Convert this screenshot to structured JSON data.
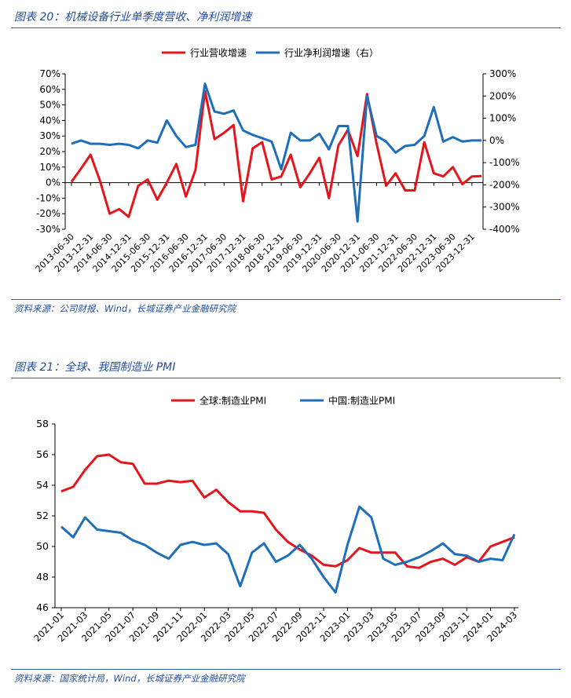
{
  "figures": [
    {
      "title": "图表 20：机械设备行业单季度营收、净利润增速",
      "source": "资料来源：公司财报、Wind，长城证券产业金融研究院"
    },
    {
      "title": "图表 21：全球、我国制造业 PMI",
      "source": "资料来源：国家统计局，Wind，长城证券产业金融研究院"
    }
  ],
  "colors": {
    "red": "#e3161d",
    "blue": "#1f6fb8",
    "frame": "#2a63b8"
  },
  "chart_data": [
    {
      "type": "line",
      "legend_position": "top",
      "grid": false,
      "x_tick_labels": [
        "2013-06-30",
        "2013-12-31",
        "2014-06-30",
        "2014-12-31",
        "2015-06-30",
        "2015-12-31",
        "2016-06-30",
        "2016-12-31",
        "2017-06-30",
        "2017-12-31",
        "2018-06-30",
        "2018-12-31",
        "2019-06-30",
        "2019-12-31",
        "2020-06-30",
        "2020-12-31",
        "2021-06-30",
        "2021-12-31",
        "2022-06-30",
        "2022-12-31",
        "2023-06-30",
        "2023-12-31"
      ],
      "x": [
        "2013-06-30",
        "2013-09-30",
        "2013-12-31",
        "2014-03-31",
        "2014-06-30",
        "2014-09-30",
        "2014-12-31",
        "2015-03-31",
        "2015-06-30",
        "2015-09-30",
        "2015-12-31",
        "2016-03-31",
        "2016-06-30",
        "2016-09-30",
        "2016-12-31",
        "2017-03-31",
        "2017-06-30",
        "2017-09-30",
        "2017-12-31",
        "2018-03-31",
        "2018-06-30",
        "2018-09-30",
        "2018-12-31",
        "2019-03-31",
        "2019-06-30",
        "2019-09-30",
        "2019-12-31",
        "2020-03-31",
        "2020-06-30",
        "2020-09-30",
        "2020-12-31",
        "2021-03-31",
        "2021-06-30",
        "2021-09-30",
        "2021-12-31",
        "2022-03-31",
        "2022-06-30",
        "2022-09-30",
        "2022-12-31",
        "2023-03-31",
        "2023-06-30",
        "2023-09-30",
        "2023-12-31",
        "2024-03-31"
      ],
      "left_ylim": [
        -30,
        70
      ],
      "left_ticks": [
        "70%",
        "60%",
        "50%",
        "40%",
        "30%",
        "20%",
        "10%",
        "0%",
        "-10%",
        "-20%",
        "-30%"
      ],
      "right_ylim": [
        -400,
        300
      ],
      "right_ticks": [
        "300%",
        "200%",
        "100%",
        "0%",
        "-100%",
        "-200%",
        "-300%",
        "-400%"
      ],
      "series": [
        {
          "name": "行业营收增速",
          "axis": "left",
          "color": "#e3161d",
          "values": [
            0.5,
            9,
            18,
            1,
            -20,
            -17,
            -22,
            -2,
            2,
            -11,
            0,
            12,
            -9,
            8,
            59,
            28,
            32,
            37,
            -12,
            22,
            26,
            2,
            4,
            18,
            -3,
            6,
            16,
            -10,
            24,
            34,
            17,
            57,
            25,
            -2,
            6,
            -5,
            -5,
            26,
            6,
            4,
            10,
            -1,
            4,
            4.2
          ]
        },
        {
          "name": "行业净利润增速（右）",
          "axis": "right",
          "color": "#1f6fb8",
          "values": [
            -15,
            0,
            -15,
            -15,
            -20,
            -15,
            -20,
            -35,
            0,
            -10,
            90,
            20,
            -30,
            -20,
            255,
            130,
            120,
            135,
            45,
            25,
            10,
            -5,
            -130,
            35,
            0,
            0,
            30,
            -40,
            65,
            65,
            -365,
            200,
            20,
            -5,
            -55,
            -25,
            -20,
            20,
            150,
            -5,
            15,
            -5,
            0,
            0
          ]
        }
      ]
    },
    {
      "type": "line",
      "legend_position": "top",
      "grid": false,
      "x_tick_labels": [
        "2021-01",
        "2021-03",
        "2021-05",
        "2021-07",
        "2021-09",
        "2021-11",
        "2022-01",
        "2022-03",
        "2022-05",
        "2022-07",
        "2022-09",
        "2022-11",
        "2023-01",
        "2023-03",
        "2023-05",
        "2023-07",
        "2023-09",
        "2023-11",
        "2024-01",
        "2024-03"
      ],
      "x": [
        "2021-01",
        "2021-02",
        "2021-03",
        "2021-04",
        "2021-05",
        "2021-06",
        "2021-07",
        "2021-08",
        "2021-09",
        "2021-10",
        "2021-11",
        "2021-12",
        "2022-01",
        "2022-02",
        "2022-03",
        "2022-04",
        "2022-05",
        "2022-06",
        "2022-07",
        "2022-08",
        "2022-09",
        "2022-10",
        "2022-11",
        "2022-12",
        "2023-01",
        "2023-02",
        "2023-03",
        "2023-04",
        "2023-05",
        "2023-06",
        "2023-07",
        "2023-08",
        "2023-09",
        "2023-10",
        "2023-11",
        "2023-12",
        "2024-01",
        "2024-02",
        "2024-03"
      ],
      "ylim": [
        46,
        58
      ],
      "y_ticks": [
        "58",
        "56",
        "54",
        "52",
        "50",
        "48",
        "46"
      ],
      "series": [
        {
          "name": "全球:制造业PMI",
          "color": "#e3161d",
          "values": [
            53.6,
            53.9,
            55,
            55.9,
            56,
            55.5,
            55.4,
            54.1,
            54.1,
            54.3,
            54.2,
            54.3,
            53.2,
            53.7,
            52.9,
            52.3,
            52.3,
            52.2,
            51.1,
            50.3,
            49.8,
            49.4,
            48.8,
            48.7,
            49.1,
            49.9,
            49.6,
            49.6,
            49.6,
            48.7,
            48.6,
            49,
            49.2,
            48.8,
            49.3,
            49,
            50,
            50.3,
            50.6
          ]
        },
        {
          "name": "中国:制造业PMI",
          "color": "#1f6fb8",
          "values": [
            51.3,
            50.6,
            51.9,
            51.1,
            51,
            50.9,
            50.4,
            50.1,
            49.6,
            49.2,
            50.1,
            50.3,
            50.1,
            50.2,
            49.5,
            47.4,
            49.6,
            50.2,
            49,
            49.4,
            50.1,
            49.2,
            48,
            47,
            50.1,
            52.6,
            51.9,
            49.2,
            48.8,
            49,
            49.3,
            49.7,
            50.2,
            49.5,
            49.4,
            49,
            49.2,
            49.1,
            50.8
          ]
        }
      ]
    }
  ]
}
